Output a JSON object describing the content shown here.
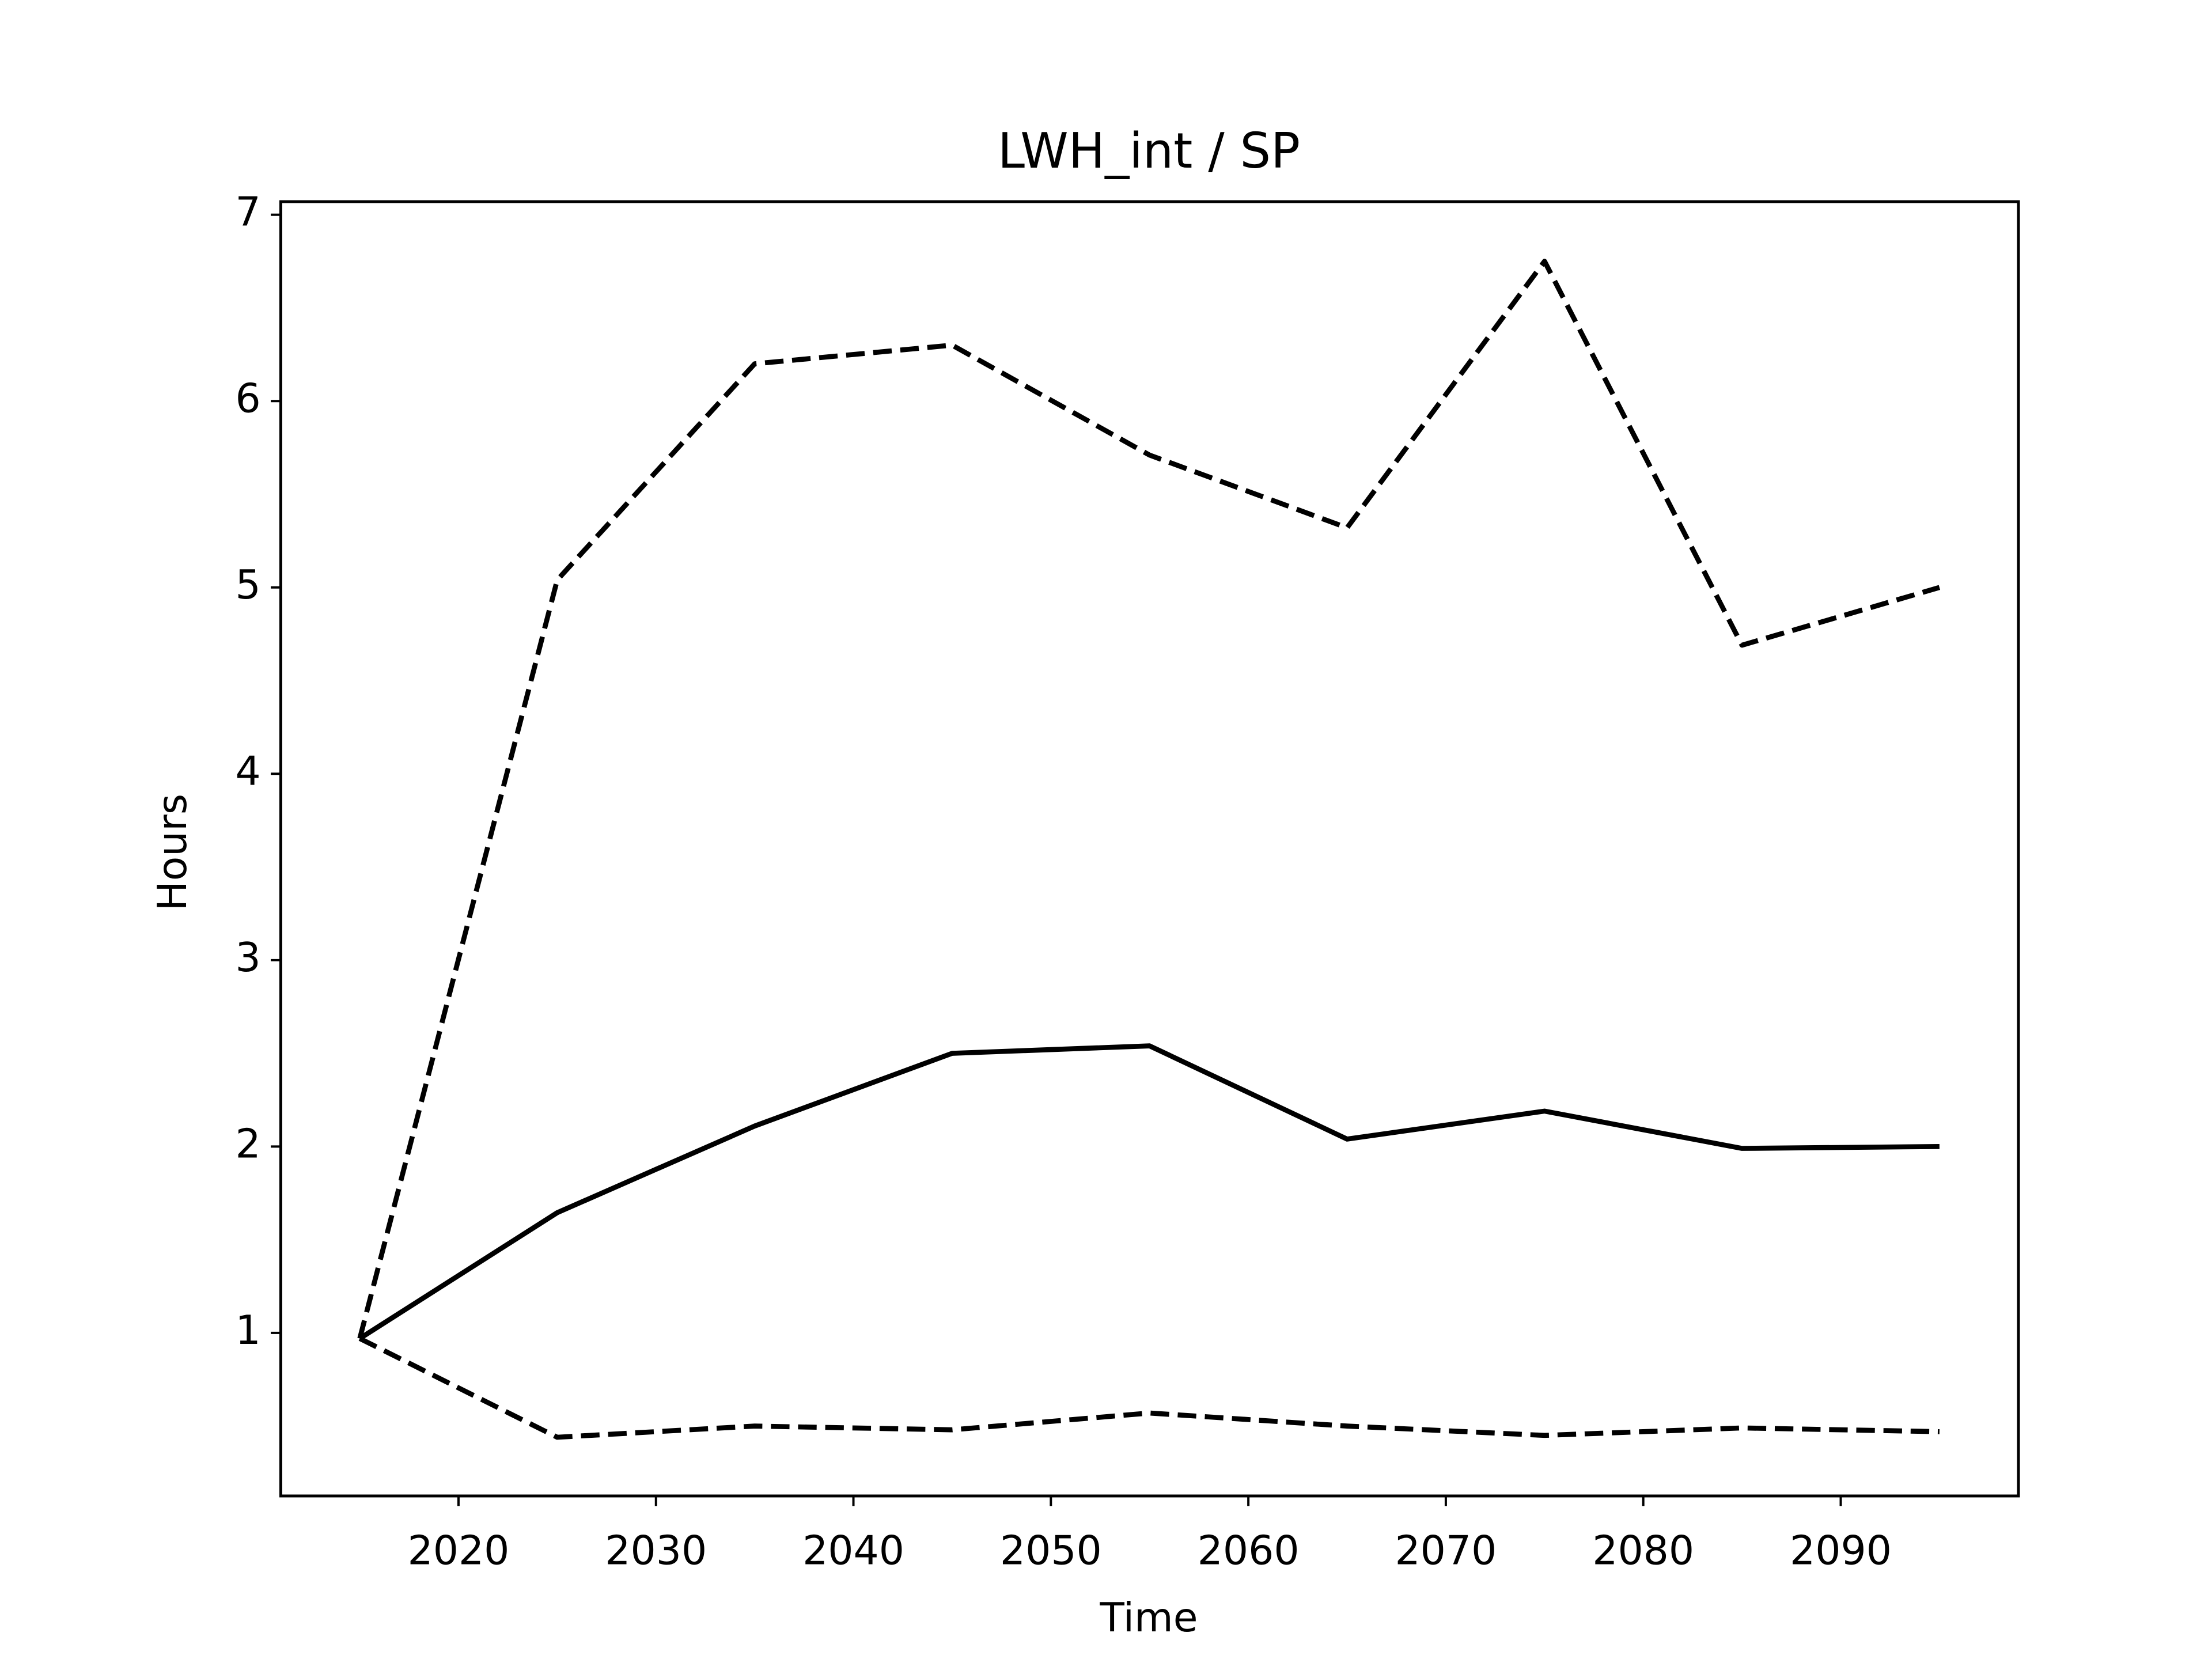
{
  "chart_data": {
    "type": "line",
    "title": "LWH_int / SP",
    "xlabel": "Time",
    "ylabel": "Hours",
    "x": [
      2015,
      2025,
      2035,
      2045,
      2055,
      2065,
      2075,
      2085,
      2095
    ],
    "series": [
      {
        "color": "#000000",
        "linestyle": "solid",
        "values": [
          0.97,
          1.645,
          2.11,
          2.5,
          2.54,
          2.04,
          2.19,
          1.99,
          2.0
        ]
      },
      {
        "color": "#000000",
        "linestyle": "dashed",
        "values": [
          0.97,
          5.04,
          6.2,
          6.3,
          5.71,
          5.32,
          6.75,
          4.69,
          5.0
        ]
      },
      {
        "color": "#000000",
        "linestyle": "dashed",
        "values": [
          0.97,
          0.44,
          0.5,
          0.48,
          0.57,
          0.5,
          0.45,
          0.49,
          0.47
        ]
      }
    ],
    "xlim": [
      2011,
      2099
    ],
    "xticks": [
      2020,
      2030,
      2040,
      2050,
      2060,
      2070,
      2080,
      2090
    ],
    "ylim": [
      0.125,
      7.07
    ],
    "yticks": [
      1,
      2,
      3,
      4,
      5,
      6,
      7
    ],
    "grid": false
  }
}
